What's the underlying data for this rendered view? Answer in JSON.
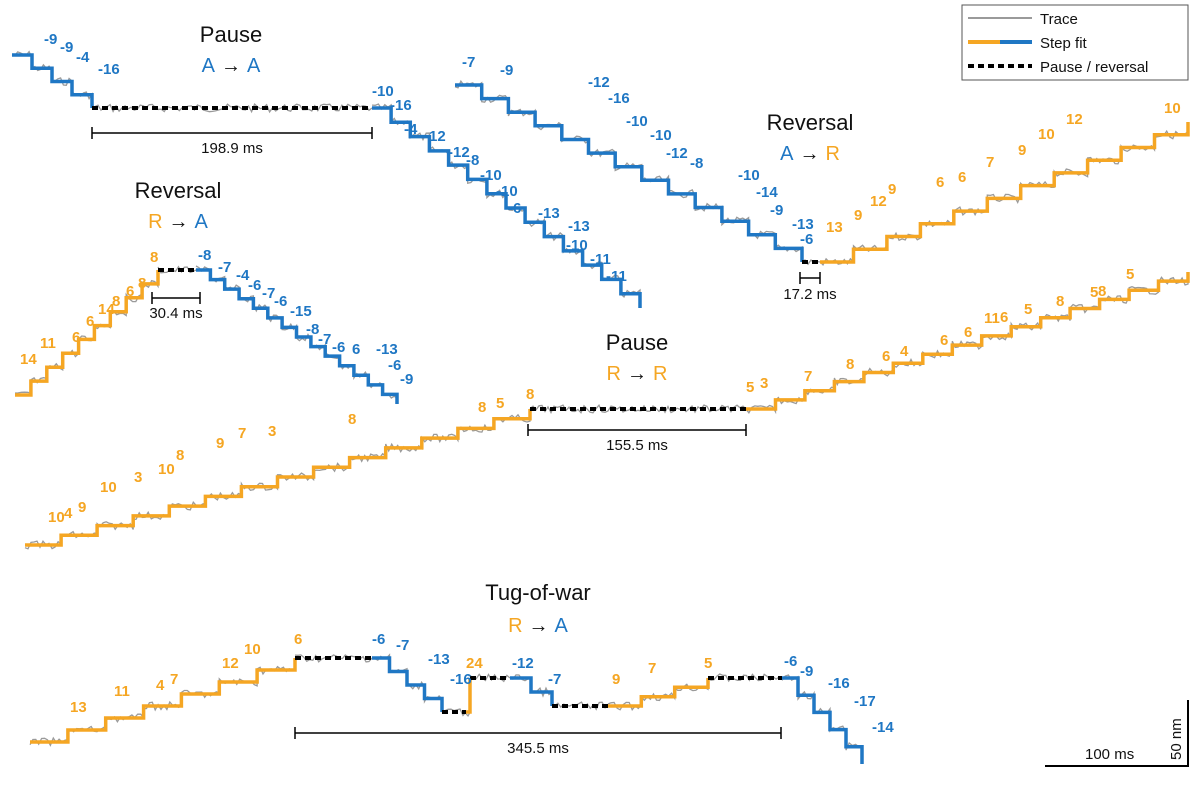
{
  "chart_data": {
    "type": "line",
    "title": "",
    "description_units": {
      "time": "ms",
      "position": "nm"
    },
    "colors": {
      "anterograde": "#1f77c4",
      "retrograde": "#f5a623",
      "pause": "#000000",
      "trace": "#9a9a9a"
    },
    "legend": {
      "placement": "top-right",
      "entries": [
        {
          "key": "trace",
          "label": "Trace"
        },
        {
          "key": "stepfit",
          "label": "Step fit"
        },
        {
          "key": "pause",
          "label": "Pause / reversal"
        }
      ]
    },
    "scale_bar": {
      "time_label": "100 ms",
      "distance_label": "50 nm"
    },
    "panels": [
      {
        "id": "pause-a",
        "title": "Pause",
        "transition": {
          "from": "A",
          "arrow": "→",
          "to": "A",
          "from_color": "anterograde",
          "to_color": "anterograde"
        },
        "duration_label": "198.9 ms",
        "segments": [
          {
            "kind": "anterograde",
            "labels": [
              "-9",
              "-9",
              "-4",
              "-16"
            ]
          },
          {
            "kind": "pause"
          },
          {
            "kind": "anterograde",
            "labels": [
              "-10",
              "-16",
              "-4",
              "-12",
              "-12",
              "-8",
              "-10",
              "-10",
              "-6",
              "-13",
              "-13",
              "-10",
              "-11",
              "-11"
            ]
          }
        ]
      },
      {
        "id": "reversal-ar",
        "title": "Reversal",
        "transition": {
          "from": "A",
          "arrow": "→",
          "to": "R",
          "from_color": "anterograde",
          "to_color": "retrograde"
        },
        "duration_label": "17.2 ms",
        "segments": [
          {
            "kind": "anterograde",
            "labels": [
              "-7",
              "-9",
              "-12",
              "-16",
              "-10",
              "-10",
              "-12",
              "-8",
              "-10",
              "-14",
              "-9",
              "-13",
              "-6"
            ]
          },
          {
            "kind": "pause"
          },
          {
            "kind": "retrograde",
            "labels": [
              "13",
              "9",
              "12",
              "9",
              "6",
              "6",
              "7",
              "9",
              "10",
              "12",
              "10"
            ]
          }
        ]
      },
      {
        "id": "reversal-ra",
        "title": "Reversal",
        "transition": {
          "from": "R",
          "arrow": "→",
          "to": "A",
          "from_color": "retrograde",
          "to_color": "anterograde"
        },
        "duration_label": "30.4 ms",
        "segments": [
          {
            "kind": "retrograde",
            "labels": [
              "14",
              "11",
              "6",
              "6",
              "14",
              "8",
              "6",
              "8",
              "8"
            ]
          },
          {
            "kind": "pause"
          },
          {
            "kind": "anterograde",
            "labels": [
              "-8",
              "-7",
              "-4",
              "-6",
              "-7",
              "-6",
              "-15",
              "-8",
              "-7",
              "-6",
              "6",
              "-13",
              "-6",
              "-9"
            ]
          }
        ]
      },
      {
        "id": "pause-r",
        "title": "Pause",
        "transition": {
          "from": "R",
          "arrow": "→",
          "to": "R",
          "from_color": "retrograde",
          "to_color": "retrograde"
        },
        "duration_label": "155.5 ms",
        "segments": [
          {
            "kind": "retrograde",
            "labels": [
              "10",
              "4",
              "9",
              "10",
              "3",
              "10",
              "8",
              "9",
              "7",
              "3",
              "8",
              "8",
              "5",
              "8"
            ]
          },
          {
            "kind": "pause"
          },
          {
            "kind": "retrograde",
            "labels": [
              "5",
              "3",
              "7",
              "8",
              "6",
              "4",
              "6",
              "6",
              "11",
              "6",
              "5",
              "8",
              "5",
              "8",
              "5"
            ]
          }
        ]
      },
      {
        "id": "tug-of-war",
        "title": "Tug-of-war",
        "transition": {
          "from": "R",
          "arrow": "→",
          "to": "A",
          "from_color": "retrograde",
          "to_color": "anterograde"
        },
        "duration_label": "345.5 ms",
        "segments": [
          {
            "kind": "retrograde",
            "labels": [
              "13",
              "11",
              "4",
              "7",
              "12",
              "10",
              "6"
            ]
          },
          {
            "kind": "pause"
          },
          {
            "kind": "anterograde",
            "labels": [
              "-6",
              "-7",
              "-13",
              "-16"
            ]
          },
          {
            "kind": "pause"
          },
          {
            "kind": "retrograde",
            "labels": [
              "24"
            ]
          },
          {
            "kind": "pause"
          },
          {
            "kind": "anterograde",
            "labels": [
              "-12",
              "-7"
            ]
          },
          {
            "kind": "pause"
          },
          {
            "kind": "retrograde",
            "labels": [
              "9",
              "7",
              "5"
            ]
          },
          {
            "kind": "pause"
          },
          {
            "kind": "anterograde",
            "labels": [
              "-6",
              "-9",
              "-16",
              "-17",
              "-14"
            ]
          }
        ]
      }
    ]
  }
}
